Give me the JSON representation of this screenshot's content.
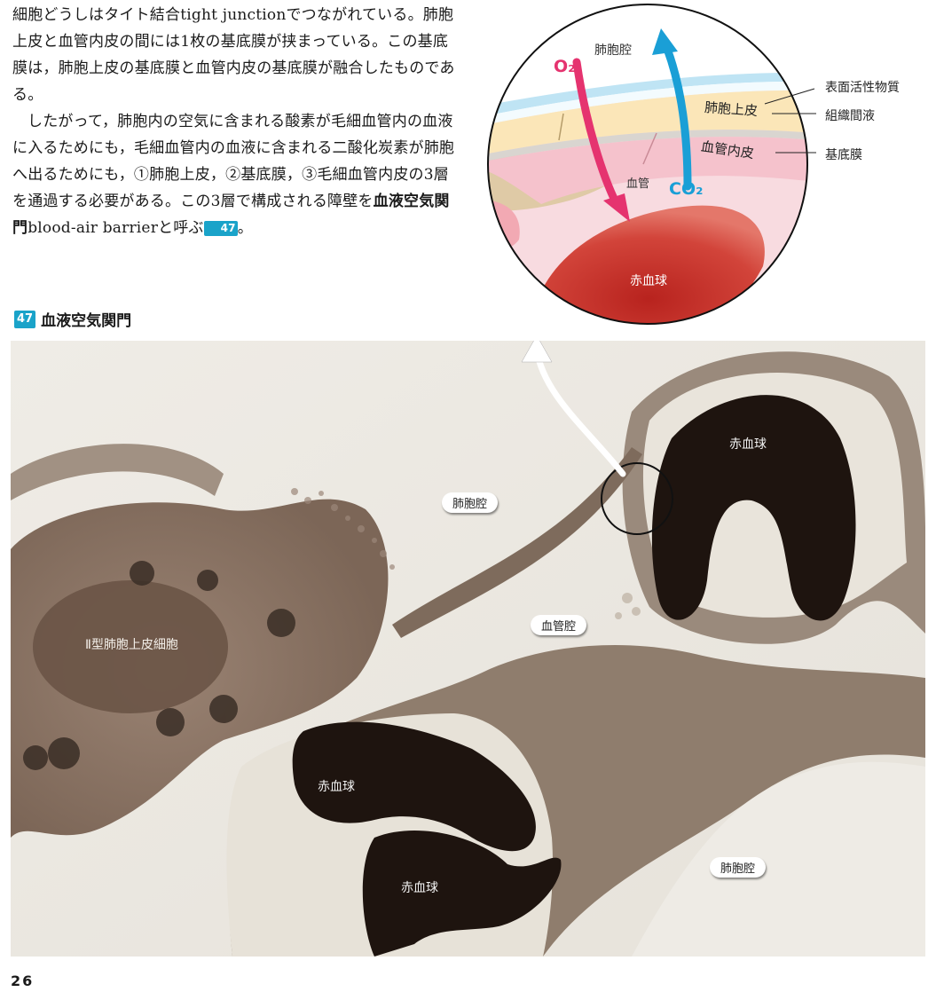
{
  "text": {
    "p1": "細胞どうしはタイト結合tight junctionでつながれている。肺胞上皮と血管内皮の間には1枚の基底膜が挟まっている。この基底膜は，肺胞上皮の基底膜と血管内皮の基底膜が融合したものである。",
    "p2_a": "したがって，肺胞内の空気に含まれる酸素が毛細血管内の血液に入るためにも，毛細血管内の血液に含まれる二酸化炭素が肺胞へ出るためにも，①肺胞上皮，②基底膜，③毛細血管内皮の3層を通過する必要がある。この3層で構成される障壁を",
    "p2_bold": "血液空気関門",
    "p2_b": "blood-air barrierと呼ぶ",
    "ref": "47"
  },
  "figure": {
    "number": "47",
    "title": "血液空気関門"
  },
  "inset": {
    "alveolar_space": "肺胞腔",
    "o2": "O₂",
    "co2": "CO₂",
    "epithelium": "肺胞上皮",
    "endothelium": "血管内皮",
    "vessel": "血管",
    "rbc": "赤血球",
    "leaders": [
      "表面活性物質",
      "組織間液",
      "基底膜"
    ]
  },
  "micrograph": {
    "alveolar_space_1": "肺胞腔",
    "vessel_lumen": "血管腔",
    "alveolar_space_2": "肺胞腔",
    "rbc_1": "赤血球",
    "rbc_2": "赤血球",
    "rbc_3": "赤血球",
    "type2_cell": "Ⅱ型肺胞上皮細胞"
  },
  "page_number": "26",
  "colors": {
    "accent": "#1aa3c9",
    "o2": "#e5336f",
    "co2": "#1a9fd6",
    "rbc_red": "#c9332b"
  }
}
